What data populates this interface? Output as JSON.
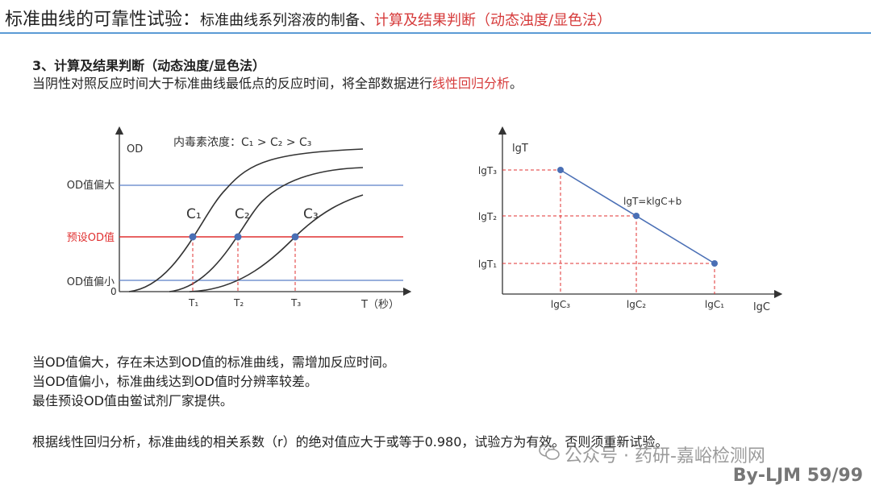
{
  "header": {
    "title_main": "标准曲线的可靠性试验：",
    "title_sub": "标准曲线系列溶液的制备、",
    "title_red": "计算及结果判断（动态浊度/显色法）"
  },
  "section": {
    "heading": "3、计算及结果判断（动态浊度/显色法）",
    "text_before": "当阴性对照反应时间大于标准曲线最低点的反应时间，将全部数据进行",
    "text_red": "线性回归分析",
    "text_after": "。"
  },
  "left_chart": {
    "y_axis_label": "OD",
    "legend_text": "内毒素浓度：C₁ > C₂ > C₃",
    "origin": "0",
    "x_axis_label": "T（秒）",
    "od_high": "OD值偏大",
    "od_preset": "预设OD值",
    "od_low": "OD值偏小",
    "curve_labels": [
      "C₁",
      "C₂",
      "C₃"
    ],
    "tick_labels": [
      "T₁",
      "T₂",
      "T₃"
    ],
    "colors": {
      "preset_line": "#e03030",
      "ref_line": "#5b7fc7",
      "point": "#4a6fb5",
      "curve": "#333333"
    }
  },
  "right_chart": {
    "y_axis_label": "lgT",
    "x_axis_label": "lgC",
    "y_ticks": [
      "lgT₃",
      "lgT₂",
      "lgT₁"
    ],
    "x_ticks": [
      "lgC₃",
      "lgC₂",
      "lgC₁"
    ],
    "equation": "lgT=klgC+b",
    "colors": {
      "line": "#4a6fb5",
      "dash": "#e03030"
    }
  },
  "notes": [
    "当OD值偏大，存在未达到OD值的标准曲线，需增加反应时间。",
    "当OD值偏小，标准曲线达到OD值时分辨率较差。",
    "最佳预设OD值由鲎试剂厂家提供。"
  ],
  "conclusion": "根据线性回归分析，标准曲线的相关系数（r）的绝对值应大于或等于0.980，试验方为有效。否则须重新试验。",
  "watermark": "公众号 · 药研-嘉峪检测网",
  "byline": "By-LJM 59/99"
}
